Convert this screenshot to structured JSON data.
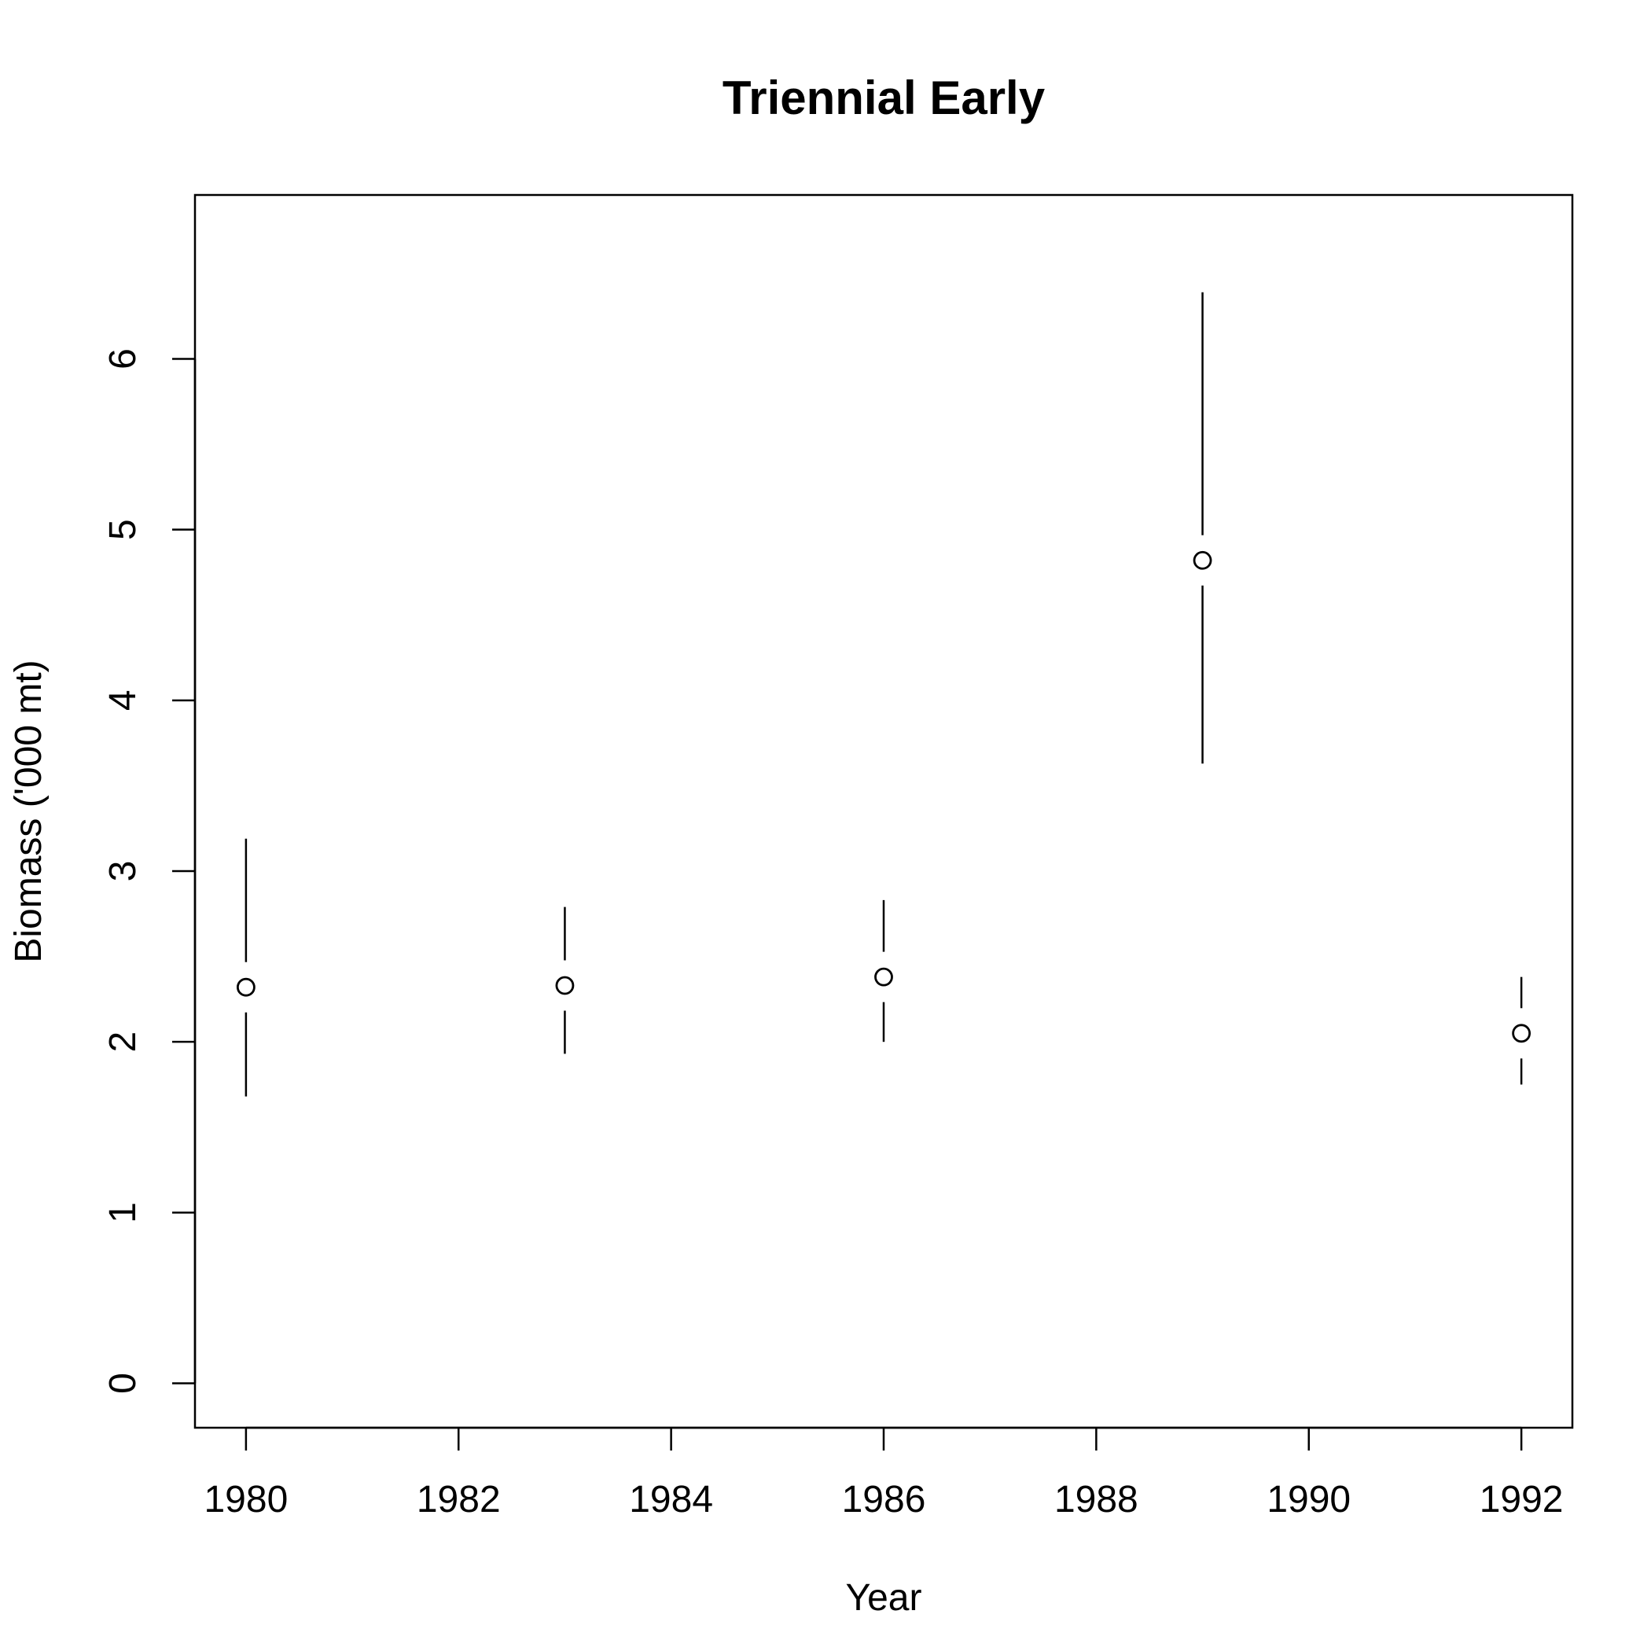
{
  "chart_data": {
    "type": "scatter",
    "title": "Triennial Early",
    "xlabel": "Year",
    "ylabel": "Biomass ('000 mt)",
    "xlim": [
      1979.52,
      1992.48
    ],
    "ylim": [
      -0.26,
      6.96
    ],
    "xticks": [
      1980,
      1982,
      1984,
      1986,
      1988,
      1990,
      1992
    ],
    "yticks": [
      0,
      1,
      2,
      3,
      4,
      5,
      6
    ],
    "grid": false,
    "legend": "none",
    "colors": {
      "marks": "#000000",
      "background": "#ffffff"
    },
    "series": [
      {
        "x": [
          1980,
          1983,
          1986,
          1989,
          1992
        ],
        "y": [
          2.32,
          2.33,
          2.38,
          4.82,
          2.05
        ],
        "lower": [
          1.68,
          1.93,
          2.0,
          3.63,
          1.75
        ],
        "upper": [
          3.19,
          2.79,
          2.83,
          6.39,
          2.38
        ]
      }
    ]
  }
}
